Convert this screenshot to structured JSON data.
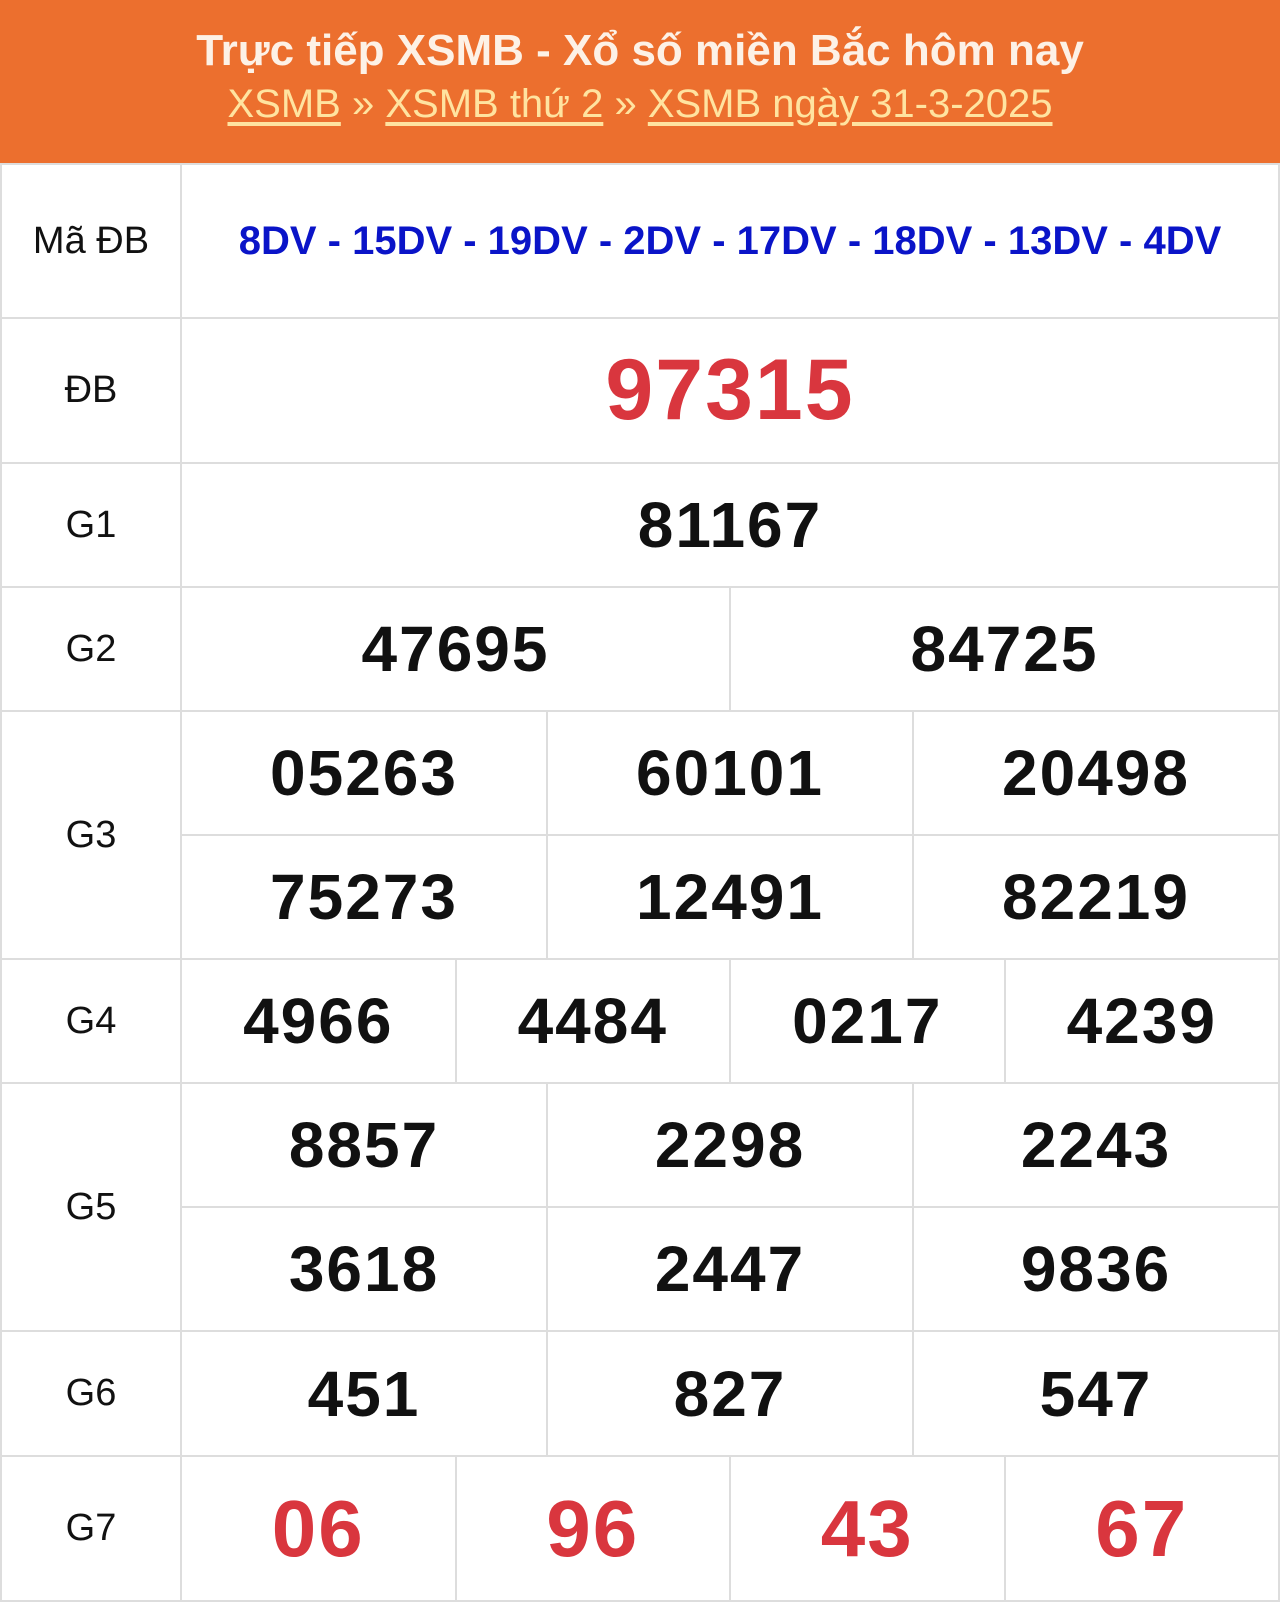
{
  "header": {
    "title": "Trực tiếp XSMB - Xổ số miền Bắc hôm nay",
    "breadcrumb": [
      "XSMB",
      "XSMB thứ 2",
      "XSMB ngày 31-3-2025"
    ],
    "separator": "»"
  },
  "colors": {
    "header_bg": "#ec6f2e",
    "special_code": "#0a14c8",
    "highlight": "#d9363e"
  },
  "results": {
    "ma_db": {
      "label": "Mã ĐB",
      "value": "8DV - 15DV - 19DV - 2DV - 17DV - 18DV - 13DV - 4DV"
    },
    "db": {
      "label": "ĐB",
      "value": "97315"
    },
    "g1": {
      "label": "G1",
      "values": [
        "81167"
      ]
    },
    "g2": {
      "label": "G2",
      "values": [
        "47695",
        "84725"
      ]
    },
    "g3": {
      "label": "G3",
      "values": [
        "05263",
        "60101",
        "20498",
        "75273",
        "12491",
        "82219"
      ]
    },
    "g4": {
      "label": "G4",
      "values": [
        "4966",
        "4484",
        "0217",
        "4239"
      ]
    },
    "g5": {
      "label": "G5",
      "values": [
        "8857",
        "2298",
        "2243",
        "3618",
        "2447",
        "9836"
      ]
    },
    "g6": {
      "label": "G6",
      "values": [
        "451",
        "827",
        "547"
      ]
    },
    "g7": {
      "label": "G7",
      "values": [
        "06",
        "96",
        "43",
        "67"
      ]
    }
  }
}
